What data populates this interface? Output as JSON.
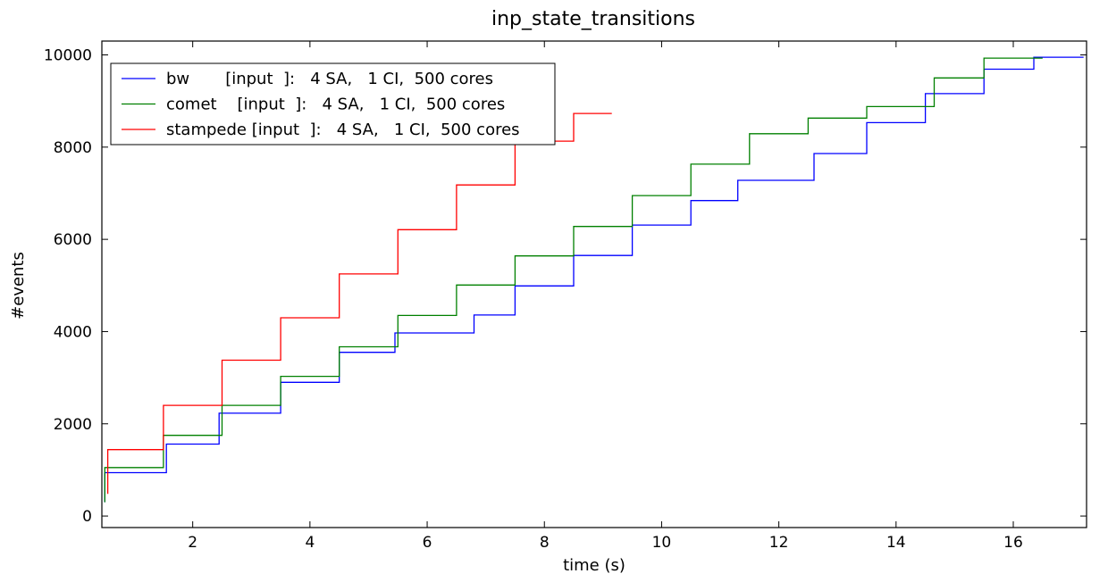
{
  "chart_data": {
    "type": "line",
    "step": true,
    "title": "inp_state_transitions",
    "xlabel": "time (s)",
    "ylabel": "#events",
    "xlim": [
      0.45,
      17.25
    ],
    "ylim": [
      -250,
      10300
    ],
    "xticks": [
      2,
      4,
      6,
      8,
      10,
      12,
      14,
      16
    ],
    "yticks": [
      0,
      2000,
      4000,
      6000,
      8000,
      10000
    ],
    "grid": false,
    "legend_position": "top-left",
    "series": [
      {
        "name": "bw       [input  ]:   4 SA,   1 CI,  500 cores",
        "color": "#0000ff",
        "x": [
          0.5,
          0.5,
          1.55,
          2.45,
          3.5,
          4.5,
          5.45,
          6.8,
          7.5,
          8.5,
          9.5,
          10.5,
          11.3,
          12.6,
          13.5,
          14.5,
          15.5,
          16.35,
          17.2
        ],
        "y": [
          300,
          940,
          1560,
          2230,
          2900,
          3550,
          3970,
          4360,
          4990,
          5650,
          6310,
          6840,
          7280,
          7860,
          8530,
          9160,
          9690,
          9950,
          9950
        ]
      },
      {
        "name": "comet    [input  ]:   4 SA,   1 CI,  500 cores",
        "color": "#008000",
        "x": [
          0.5,
          0.5,
          1.5,
          2.5,
          3.5,
          4.5,
          5.5,
          6.5,
          7.5,
          8.5,
          9.5,
          10.5,
          11.5,
          12.5,
          13.5,
          14.65,
          15.5,
          16.5
        ],
        "y": [
          300,
          1050,
          1750,
          2400,
          3030,
          3670,
          4350,
          5010,
          5640,
          6280,
          6950,
          7630,
          8290,
          8630,
          8880,
          9500,
          9930,
          9930
        ]
      },
      {
        "name": "stampede [input  ]:   4 SA,   1 CI,  500 cores",
        "color": "#ff0000",
        "x": [
          0.55,
          0.55,
          1.5,
          2.5,
          3.5,
          4.5,
          5.5,
          6.5,
          7.5,
          8.5,
          9.15
        ],
        "y": [
          480,
          1440,
          2400,
          3380,
          4300,
          5250,
          6210,
          7180,
          8130,
          8730,
          8730
        ]
      }
    ]
  }
}
